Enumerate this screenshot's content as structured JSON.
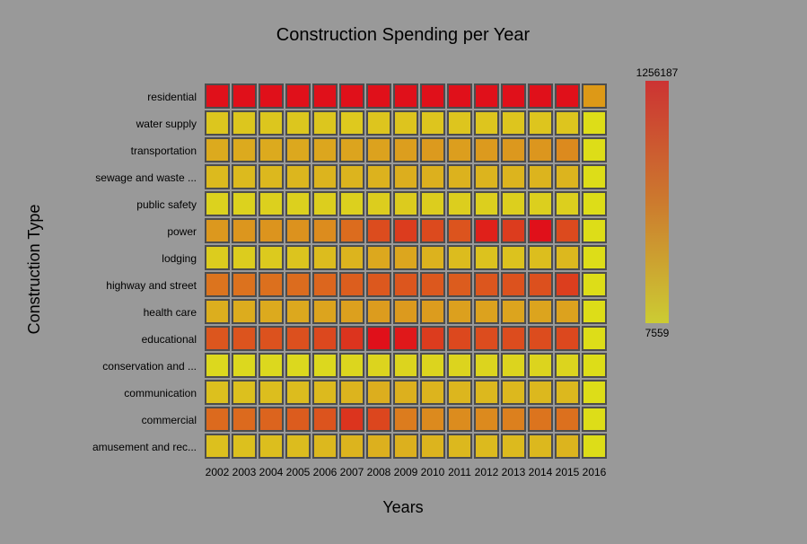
{
  "chart_data": {
    "type": "heatmap",
    "title": "Construction Spending per Year",
    "xlabel": "Years",
    "ylabel": "Construction Type",
    "x": [
      "2002",
      "2003",
      "2004",
      "2005",
      "2006",
      "2007",
      "2008",
      "2009",
      "2010",
      "2011",
      "2012",
      "2013",
      "2014",
      "2015",
      "2016"
    ],
    "y": [
      "residential",
      "water supply",
      "transportation",
      "sewage and waste ...",
      "public safety",
      "power",
      "lodging",
      "highway and street",
      "health care",
      "educational",
      "conservation and ...",
      "communication",
      "commercial",
      "amusement and rec..."
    ],
    "z": [
      [
        1200000,
        1220000,
        1240000,
        1245000,
        1250000,
        1256187,
        1230000,
        1220000,
        1230000,
        1235000,
        1225000,
        1220000,
        1220000,
        1230000,
        520000
      ],
      [
        90000,
        92000,
        95000,
        97000,
        100000,
        105000,
        110000,
        115000,
        112000,
        110000,
        110000,
        112000,
        115000,
        118000,
        12000
      ],
      [
        420000,
        430000,
        440000,
        450000,
        470000,
        490000,
        520000,
        540000,
        540000,
        545000,
        560000,
        570000,
        580000,
        620000,
        35000
      ],
      [
        240000,
        250000,
        260000,
        270000,
        280000,
        300000,
        320000,
        330000,
        320000,
        310000,
        300000,
        300000,
        300000,
        305000,
        25000
      ],
      [
        90000,
        95000,
        100000,
        105000,
        110000,
        115000,
        125000,
        130000,
        125000,
        120000,
        115000,
        115000,
        115000,
        118000,
        10000
      ],
      [
        450000,
        480000,
        500000,
        520000,
        560000,
        640000,
        820000,
        860000,
        830000,
        800000,
        1030000,
        900000,
        1100000,
        880000,
        40000
      ],
      [
        100000,
        105000,
        110000,
        140000,
        190000,
        250000,
        330000,
        350000,
        310000,
        260000,
        220000,
        220000,
        240000,
        280000,
        25000
      ],
      [
        700000,
        720000,
        740000,
        760000,
        790000,
        820000,
        850000,
        860000,
        850000,
        830000,
        860000,
        880000,
        880000,
        930000,
        60000
      ],
      [
        390000,
        400000,
        410000,
        430000,
        450000,
        480000,
        510000,
        520000,
        500000,
        490000,
        480000,
        470000,
        470000,
        480000,
        40000
      ],
      [
        800000,
        830000,
        850000,
        870000,
        900000,
        1000000,
        1100000,
        1080000,
        960000,
        900000,
        880000,
        880000,
        880000,
        900000,
        70000
      ],
      [
        50000,
        52000,
        55000,
        58000,
        60000,
        65000,
        70000,
        72000,
        70000,
        68000,
        66000,
        65000,
        65000,
        66000,
        7559
      ],
      [
        260000,
        270000,
        280000,
        290000,
        310000,
        330000,
        360000,
        370000,
        350000,
        330000,
        320000,
        320000,
        320000,
        325000,
        20000
      ],
      [
        680000,
        690000,
        720000,
        750000,
        800000,
        900000,
        880000,
        700000,
        560000,
        540000,
        560000,
        600000,
        640000,
        660000,
        45000
      ],
      [
        260000,
        260000,
        270000,
        280000,
        300000,
        320000,
        340000,
        340000,
        320000,
        300000,
        290000,
        290000,
        300000,
        320000,
        20000
      ]
    ],
    "colorscale": {
      "min": 7559,
      "max": 1256187,
      "low_color": "#cccc33",
      "mid_color": "#cc7a2e",
      "high_color": "#cc3333",
      "min_label": "7559",
      "max_label": "1256187"
    },
    "cell_colors": [
      [
        "#e0101a",
        "#e0101a",
        "#e0101a",
        "#e0101a",
        "#e0101a",
        "#e0101a",
        "#e0101a",
        "#e0101a",
        "#e0101a",
        "#e0101a",
        "#e0101a",
        "#e0101a",
        "#e0101a",
        "#e0101a",
        "#dd9917"
      ],
      [
        "#dcc61e",
        "#dcc61e",
        "#dcc61e",
        "#dcc61e",
        "#dcc61e",
        "#dec91e",
        "#ddc51e",
        "#ddc41e",
        "#ddc51e",
        "#ddc51e",
        "#ddc51e",
        "#ddc51e",
        "#ddc51e",
        "#ddc51e",
        "#dddd18"
      ],
      [
        "#dcaa1e",
        "#dcaa1e",
        "#dcaa1e",
        "#dca81e",
        "#dca61e",
        "#dca41e",
        "#dca21e",
        "#dc9e1e",
        "#dc9a1e",
        "#dc9e1e",
        "#dc9a1e",
        "#dc981e",
        "#dc961e",
        "#dc8a1e",
        "#dddd18"
      ],
      [
        "#dcba1e",
        "#dcba1e",
        "#dcb81e",
        "#dcb61e",
        "#dcb41e",
        "#dcb41e",
        "#dcb21e",
        "#dcae1e",
        "#dcb01e",
        "#dcb21e",
        "#dcb41e",
        "#dcb41e",
        "#dcb41e",
        "#dcb41e",
        "#dddd18"
      ],
      [
        "#dcd21e",
        "#dcd21e",
        "#dcd01e",
        "#dcd01e",
        "#dcce1e",
        "#dcd01e",
        "#dccd1e",
        "#dccb1e",
        "#dccd1e",
        "#dcce1e",
        "#dccf1e",
        "#dccf1e",
        "#dccf1e",
        "#dccf1e",
        "#dddd18"
      ],
      [
        "#dc981e",
        "#dc961e",
        "#dc941e",
        "#dc921e",
        "#dc8c1e",
        "#dc6c1e",
        "#dc4c1e",
        "#dc3c1e",
        "#dc4a1e",
        "#dc541e",
        "#e0201a",
        "#dc3c1e",
        "#e0101a",
        "#dc4a1e",
        "#dddd18"
      ],
      [
        "#dccc1e",
        "#dccc1e",
        "#dcca1e",
        "#dcc41e",
        "#dcbc1e",
        "#dcb41e",
        "#dca81e",
        "#dca61e",
        "#dcb21e",
        "#dcbc1e",
        "#dcc21e",
        "#dcc21e",
        "#dcbe1e",
        "#dcb81e",
        "#dddd18"
      ],
      [
        "#dc741e",
        "#dc721e",
        "#dc701e",
        "#dc6c1e",
        "#dc661e",
        "#dc5e1e",
        "#dc581e",
        "#dc561e",
        "#dc581e",
        "#dc5c1e",
        "#dc561e",
        "#dc521e",
        "#dc501e",
        "#dc3e1e",
        "#dddd18"
      ],
      [
        "#dcae1e",
        "#dcac1e",
        "#dcaa1e",
        "#dca81e",
        "#dca41e",
        "#dca01e",
        "#dc9c1e",
        "#dc9a1e",
        "#dc9c1e",
        "#dca01e",
        "#dca21e",
        "#dca41e",
        "#dca41e",
        "#dca21e",
        "#dddd18"
      ],
      [
        "#dc561e",
        "#dc541e",
        "#dc521e",
        "#dc501e",
        "#dc481e",
        "#dc341e",
        "#e0101a",
        "#e0181a",
        "#dc3c1e",
        "#dc481e",
        "#dc4c1e",
        "#dc4c1e",
        "#dc4c1e",
        "#dc481e",
        "#dddd18"
      ],
      [
        "#dcd81e",
        "#dcd81e",
        "#dcd81e",
        "#dcd81e",
        "#dcd81e",
        "#dcd61e",
        "#dcd41e",
        "#dcd41e",
        "#dcd41e",
        "#dcd41e",
        "#dcd41e",
        "#dcd41e",
        "#dcd41e",
        "#dcd41e",
        "#dddd18"
      ],
      [
        "#dcc01e",
        "#dcc01e",
        "#dcbe1e",
        "#dcbc1e",
        "#dcba1e",
        "#dcb41e",
        "#dcae1e",
        "#dcb01e",
        "#dcb41e",
        "#dcb61e",
        "#dcb81e",
        "#dcb81e",
        "#dcb81e",
        "#dcb81e",
        "#dddd18"
      ],
      [
        "#dc6a1e",
        "#dc6a1e",
        "#dc641e",
        "#dc5c1e",
        "#dc541e",
        "#dc341e",
        "#dc461e",
        "#dc7c1e",
        "#dc8a1e",
        "#dc8c1e",
        "#dc8a1e",
        "#dc801e",
        "#dc741e",
        "#dc701e",
        "#dddd18"
      ],
      [
        "#dcc01e",
        "#dcc01e",
        "#dcbe1e",
        "#dcbc1e",
        "#dcb81e",
        "#dcb41e",
        "#dcb01e",
        "#dcb01e",
        "#dcb41e",
        "#dcb81e",
        "#dcba1e",
        "#dcba1e",
        "#dcb81e",
        "#dcb41e",
        "#dddd18"
      ]
    ],
    "grid": false,
    "legend_placement": "right"
  }
}
